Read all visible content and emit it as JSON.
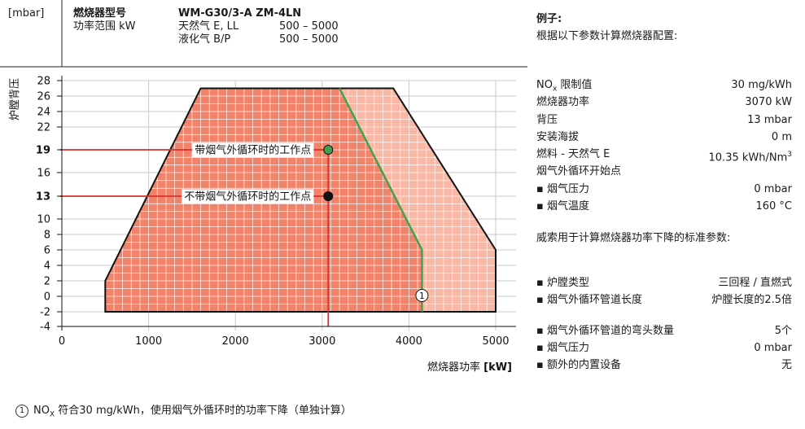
{
  "header": {
    "unit_label": "[mbar]",
    "burner_type_label": "燃烧器型号",
    "burner_model": "WM-G30/3-A ZM-4LN",
    "power_range_label": "功率范围 kW",
    "fuel_rows": [
      {
        "fuel": "天然气 E, LL",
        "range": "500 – 5000"
      },
      {
        "fuel": "液化气 B/P",
        "range": "500 – 5000"
      }
    ]
  },
  "chart_data": {
    "type": "area",
    "ylabel": "炉膛背压",
    "xlabel": "燃烧器功率",
    "xlabel_unit": "[kW]",
    "x_ticks": [
      0,
      1000,
      2000,
      3000,
      4000,
      5000
    ],
    "y_ticks": [
      -4,
      -2,
      0,
      2,
      4,
      6,
      8,
      10,
      13,
      16,
      19,
      22,
      24,
      26,
      28
    ],
    "y_ticks_bold": [
      13,
      19
    ],
    "xlim": [
      0,
      5000
    ],
    "ylim": [
      -4,
      28
    ],
    "operating_envelope": {
      "x": [
        500,
        500,
        1600,
        3820,
        5000,
        5000
      ],
      "y": [
        -2,
        2,
        27,
        27,
        6,
        -2
      ]
    },
    "nox_limit_line": {
      "x": [
        3200,
        4150,
        4150
      ],
      "y": [
        27,
        6,
        -2
      ]
    },
    "work_point_x": 3070,
    "points": [
      {
        "label": "带烟气外循环时的工作点",
        "x": 3070,
        "y": 19,
        "color": "#3fa34d"
      },
      {
        "label": "不带烟气外循环时的工作点",
        "x": 3070,
        "y": 13,
        "color": "#111111"
      }
    ],
    "marker_label": "1",
    "colors": {
      "envelope_dark": "#f2836b",
      "envelope_light": "#f9b7a6",
      "nox_line": "#3fa34d",
      "guide_line": "#d9302a"
    }
  },
  "example": {
    "title": "例子:",
    "subtitle": "根据以下参数计算燃烧器配置:",
    "params": [
      {
        "key_prefix": "NO",
        "key_sub": "x",
        "key_suffix": " 限制值",
        "value": "30 mg/kWh"
      },
      {
        "key": "燃烧器功率",
        "value": "3070 kW"
      },
      {
        "key": "背压",
        "value": "13 mbar"
      },
      {
        "key": "安装海拔",
        "value": "0 m"
      },
      {
        "key": "燃料 - 天然气 E",
        "value_prefix": "10.35 kWh/Nm",
        "value_sup": "3"
      },
      {
        "key": "烟气外循环开始点",
        "value": ""
      },
      {
        "key": "▪ 烟气压力",
        "value": "0 mbar"
      },
      {
        "key": "▪ 烟气温度",
        "value": "160 °C"
      }
    ],
    "note": "威索用于计算燃烧器功率下降的标准参数:",
    "std_params_a": [
      {
        "key": "▪  炉膛类型",
        "value": "三回程 / 直燃式"
      },
      {
        "key": "▪  烟气外循环管道长度",
        "value": "炉膛长度的2.5倍"
      }
    ],
    "std_params_b": [
      {
        "key": "▪  烟气外循环管道的弯头数量",
        "value": "5个"
      },
      {
        "key": "▪  烟气压力",
        "value": "0 mbar"
      },
      {
        "key": "▪  额外的内置设备",
        "value": "无"
      }
    ]
  },
  "footnote": {
    "marker": "1",
    "prefix": "NO",
    "sub": "X",
    "text": " 符合30 mg/kWh，使用烟气外循环时的功率下降（单独计算）"
  }
}
